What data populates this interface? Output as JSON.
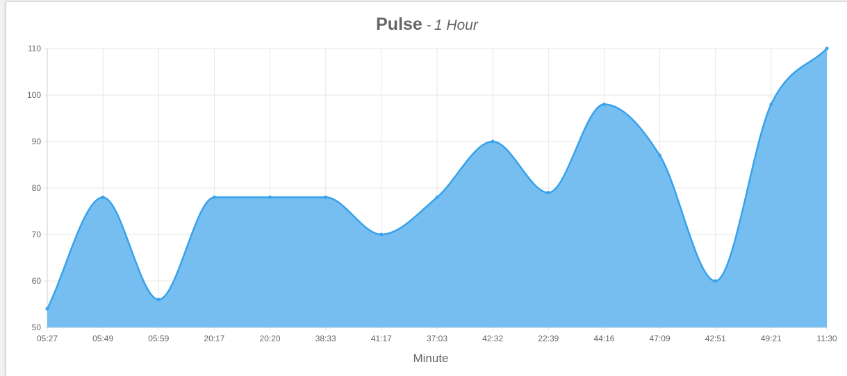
{
  "title": {
    "main": "Pulse",
    "separator": "-",
    "subtitle": "1 Hour"
  },
  "chart_data": {
    "type": "area",
    "title": "Pulse - 1 Hour",
    "xlabel": "Minute",
    "ylabel": "",
    "categories": [
      "05:27",
      "05:49",
      "05:59",
      "20:17",
      "20:20",
      "38:33",
      "41:17",
      "37:03",
      "42:32",
      "22:39",
      "44:16",
      "47:09",
      "42:51",
      "49:21",
      "11:30"
    ],
    "series": [
      {
        "values": [
          54,
          78,
          56,
          78,
          78,
          78,
          70,
          78,
          90,
          79,
          98,
          87,
          60,
          98,
          110
        ]
      }
    ],
    "ylim": [
      50,
      110
    ],
    "yticks": [
      50,
      60,
      70,
      80,
      90,
      100,
      110
    ],
    "grid": true,
    "legend": "none",
    "line_color": "#36a2eb",
    "fill_color": "#6fbaef"
  }
}
